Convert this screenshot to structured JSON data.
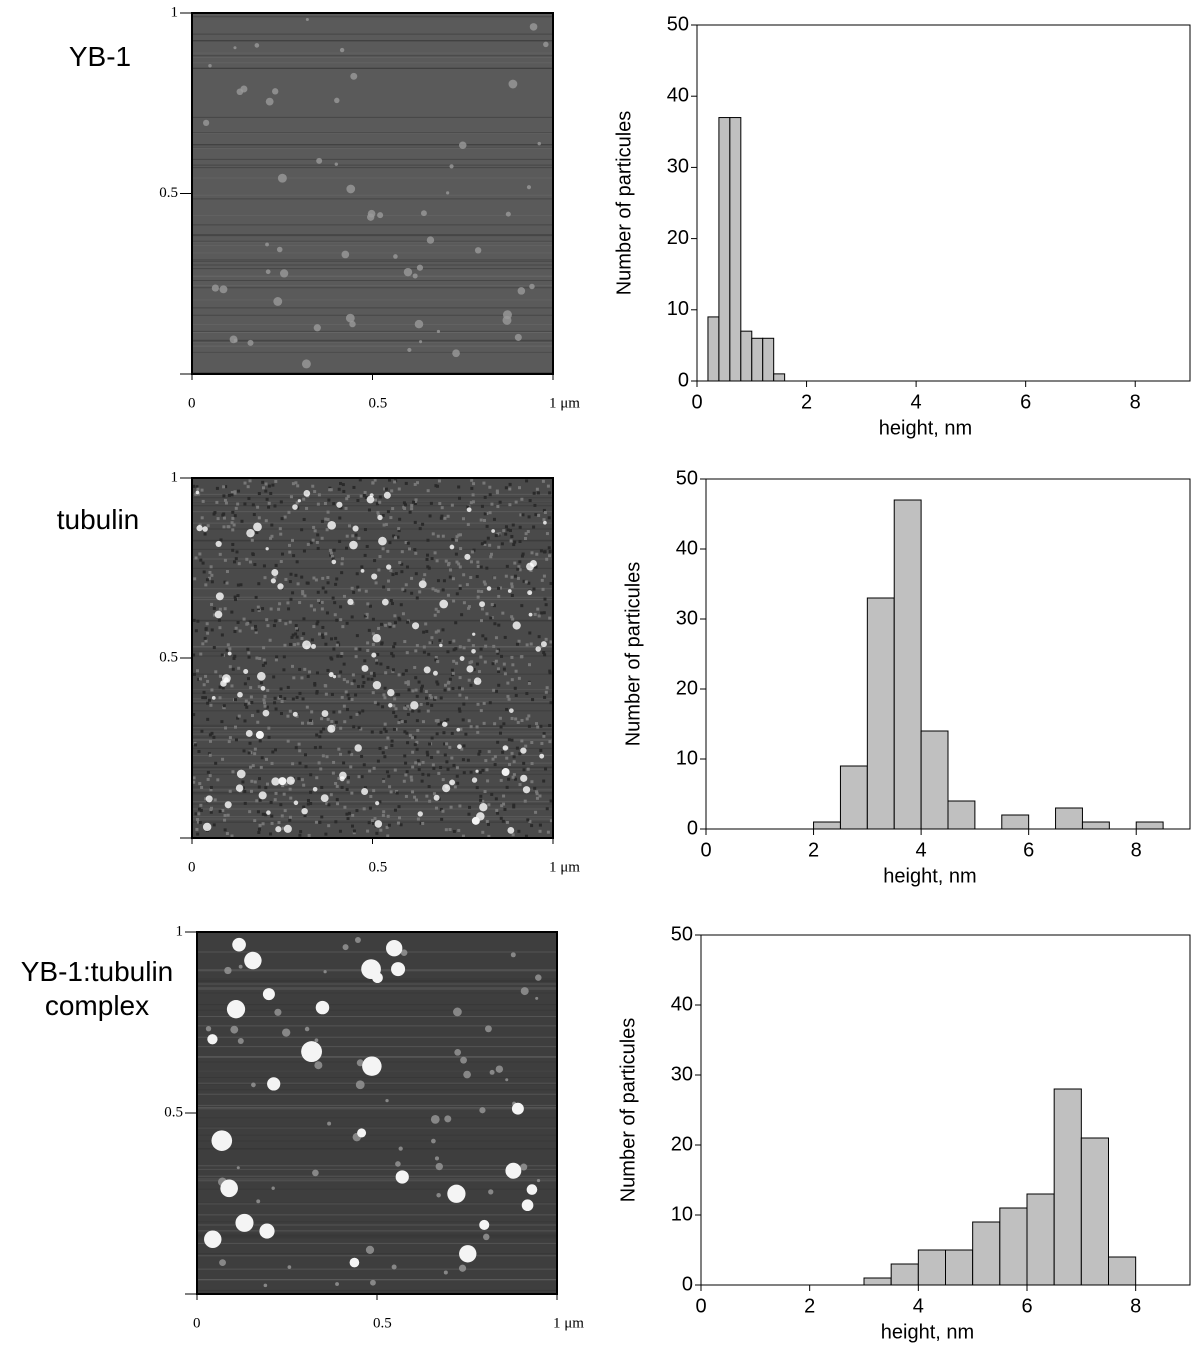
{
  "chart_data": [
    {
      "type": "image",
      "title": "YB-1",
      "xlim": [
        0,
        1
      ],
      "ylim": [
        0,
        1
      ],
      "xticks": [
        0,
        0.5,
        {
          "value": 1,
          "label": "1 μm"
        }
      ],
      "yticks": [
        0.5,
        1
      ]
    },
    {
      "type": "histogram",
      "x_label": "height, nm",
      "y_label": "Number of particules",
      "bins": [
        0.2,
        0.4,
        0.6,
        0.8,
        1.0,
        1.2,
        1.4,
        1.6
      ],
      "values": [
        9,
        37,
        37,
        7,
        6,
        6,
        1
      ],
      "color": "#c0c0c0",
      "xlim": [
        0,
        9
      ],
      "ylim": [
        0,
        50
      ],
      "xticks": [
        0,
        2,
        4,
        6,
        8
      ],
      "yticks": [
        0,
        10,
        20,
        30,
        40,
        50
      ]
    },
    {
      "type": "image",
      "title": "tubulin",
      "xlim": [
        0,
        1
      ],
      "ylim": [
        0,
        1
      ],
      "xticks": [
        0,
        0.5,
        {
          "value": 1,
          "label": "1 μm"
        }
      ],
      "yticks": [
        0.5,
        1
      ]
    },
    {
      "type": "histogram",
      "x_label": "height, nm",
      "y_label": "Number of particules",
      "bins": [
        2,
        2.5,
        3,
        3.5,
        4,
        4.5,
        5,
        5.5,
        6,
        6.5,
        7,
        7.5,
        8,
        8.5
      ],
      "values": [
        1,
        9,
        33,
        47,
        14,
        4,
        0,
        2,
        0,
        3,
        1,
        0,
        1
      ],
      "color": "#c0c0c0",
      "xlim": [
        0,
        9
      ],
      "ylim": [
        0,
        50
      ],
      "xticks": [
        0,
        2,
        4,
        6,
        8
      ],
      "yticks": [
        0,
        10,
        20,
        30,
        40,
        50
      ]
    },
    {
      "type": "image",
      "title": "YB-1:tubulin complex",
      "xlim": [
        0,
        1
      ],
      "ylim": [
        0,
        1
      ],
      "xticks": [
        0,
        0.5,
        {
          "value": 1,
          "label": "1 μm"
        }
      ],
      "yticks": [
        0.5,
        1
      ]
    },
    {
      "type": "histogram",
      "x_label": "height, nm",
      "y_label": "Number of particules",
      "bins": [
        3,
        3.5,
        4,
        4.5,
        5,
        5.5,
        6,
        6.5,
        7,
        7.5,
        8
      ],
      "values": [
        1,
        3,
        5,
        5,
        9,
        11,
        13,
        28,
        21,
        4
      ],
      "color": "#c0c0c0",
      "xlim": [
        0,
        9
      ],
      "ylim": [
        0,
        50
      ],
      "xticks": [
        0,
        2,
        4,
        6,
        8
      ],
      "yticks": [
        0,
        10,
        20,
        30,
        40,
        50
      ]
    }
  ]
}
